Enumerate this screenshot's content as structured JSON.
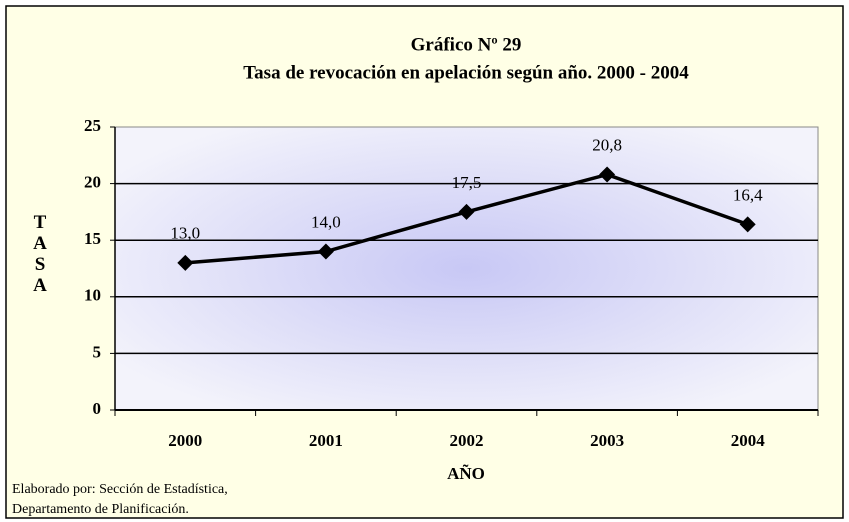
{
  "chart_data": {
    "type": "line",
    "title": [
      "Gráfico Nº 29",
      "Tasa de revocación en apelación según año. 2000 - 2004"
    ],
    "categories": [
      "2000",
      "2001",
      "2002",
      "2003",
      "2004"
    ],
    "series": [
      {
        "name": "Tasa",
        "color": "#000000",
        "values": [
          13.0,
          14.0,
          17.5,
          20.8,
          16.4
        ],
        "value_labels": [
          "13,0",
          "14,0",
          "17,5",
          "20,8",
          "16,4"
        ]
      }
    ],
    "ylim": [
      0,
      25
    ],
    "yticks": [
      0,
      5,
      10,
      15,
      20,
      25
    ],
    "grid": true,
    "x_label": "AÑO",
    "y_label": "TASA",
    "source": [
      "Elaborado por: Sección de Estadística,",
      "Departamento de Planificación."
    ]
  }
}
